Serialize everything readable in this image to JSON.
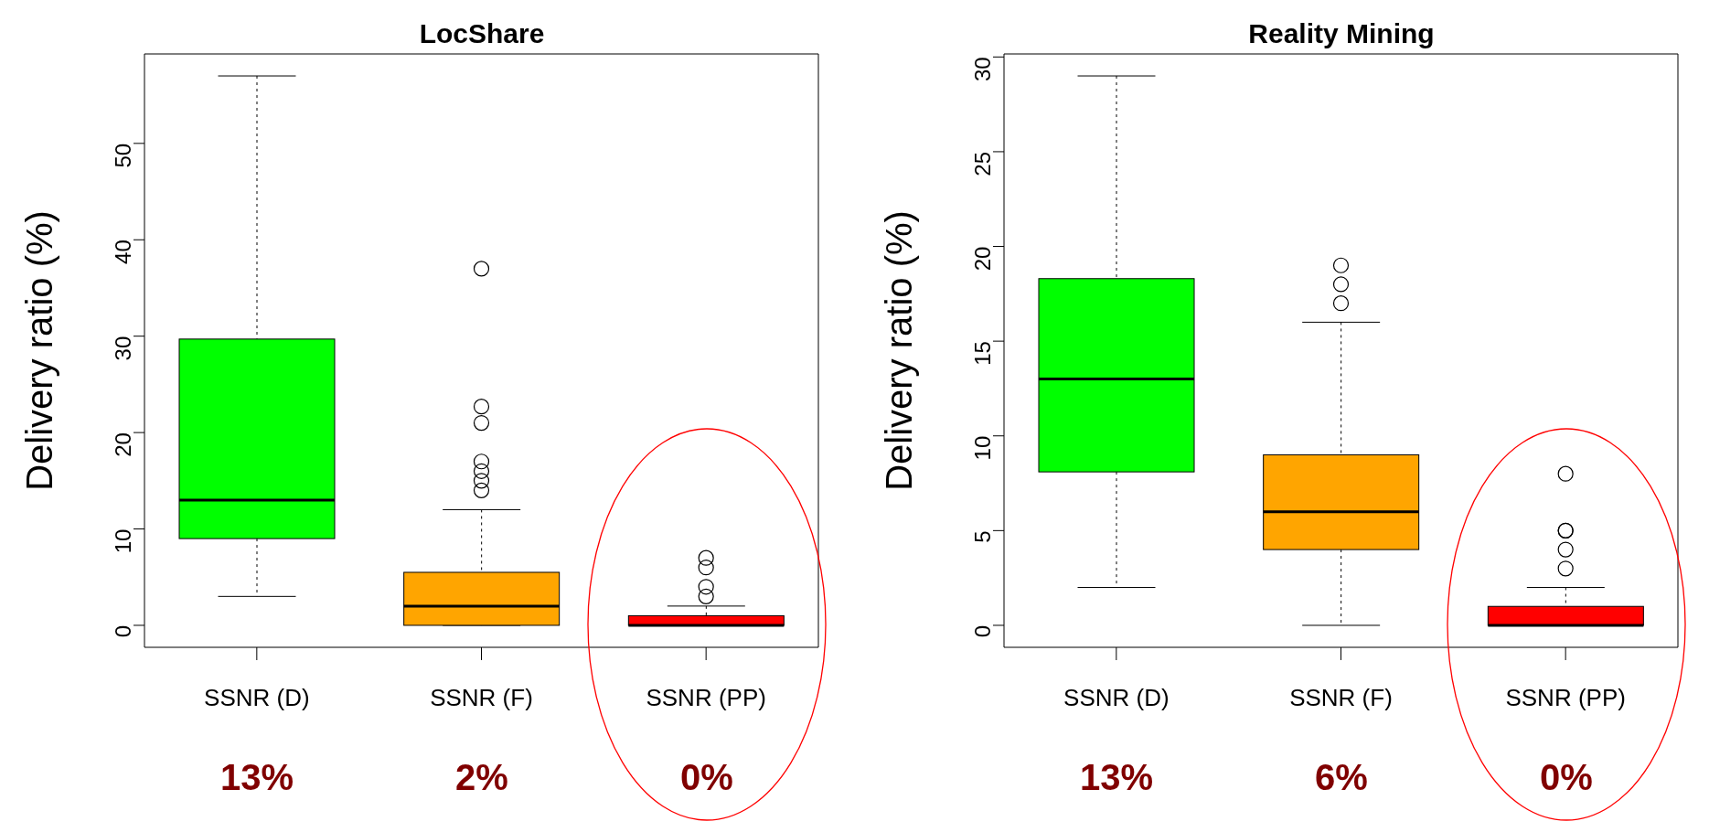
{
  "chart_data": [
    {
      "type": "box",
      "title": "LocShare",
      "ylabel": "Delivery ratio (%)",
      "categories": [
        "SSNR (D)",
        "SSNR (F)",
        "SSNR (PP)"
      ],
      "colors": [
        "#00ff00",
        "#ffa500",
        "#ff0000"
      ],
      "marker": "circle",
      "ylim": [
        -2.28,
        59.28
      ],
      "yticks": [
        0,
        10,
        20,
        30,
        40,
        50
      ],
      "boxes": [
        {
          "low": 3,
          "q1": 9,
          "median": 13,
          "q3": 29.7,
          "high": 57
        },
        {
          "low": 0,
          "q1": 0,
          "median": 2,
          "q3": 5.5,
          "high": 12,
          "outliers": [
            14,
            15,
            16,
            17,
            21,
            22.7,
            37
          ]
        },
        {
          "low": 0,
          "q1": 0,
          "median": 0,
          "q3": 1,
          "high": 2,
          "outliers": [
            3,
            4,
            6,
            7
          ]
        }
      ],
      "annotations": [
        "13%",
        "2%",
        "0%"
      ]
    },
    {
      "type": "box",
      "title": "Reality Mining",
      "ylabel": "Delivery ratio (%)",
      "categories": [
        "SSNR (D)",
        "SSNR (F)",
        "SSNR (PP)"
      ],
      "colors": [
        "#00ff00",
        "#ffa500",
        "#ff0000"
      ],
      "marker": "circle",
      "ylim": [
        -1.16,
        30.16
      ],
      "yticks": [
        0,
        5,
        10,
        15,
        20,
        25,
        30
      ],
      "boxes": [
        {
          "low": 2,
          "q1": 8.1,
          "median": 13,
          "q3": 18.3,
          "high": 29
        },
        {
          "low": 0,
          "q1": 4,
          "median": 6,
          "q3": 9,
          "high": 16,
          "outliers": [
            17,
            18,
            19
          ]
        },
        {
          "low": 0,
          "q1": 0,
          "median": 0,
          "q3": 1,
          "high": 2,
          "outliers": [
            3,
            4,
            5,
            5,
            8
          ]
        }
      ],
      "annotations": [
        "13%",
        "6%",
        "0%"
      ]
    }
  ]
}
